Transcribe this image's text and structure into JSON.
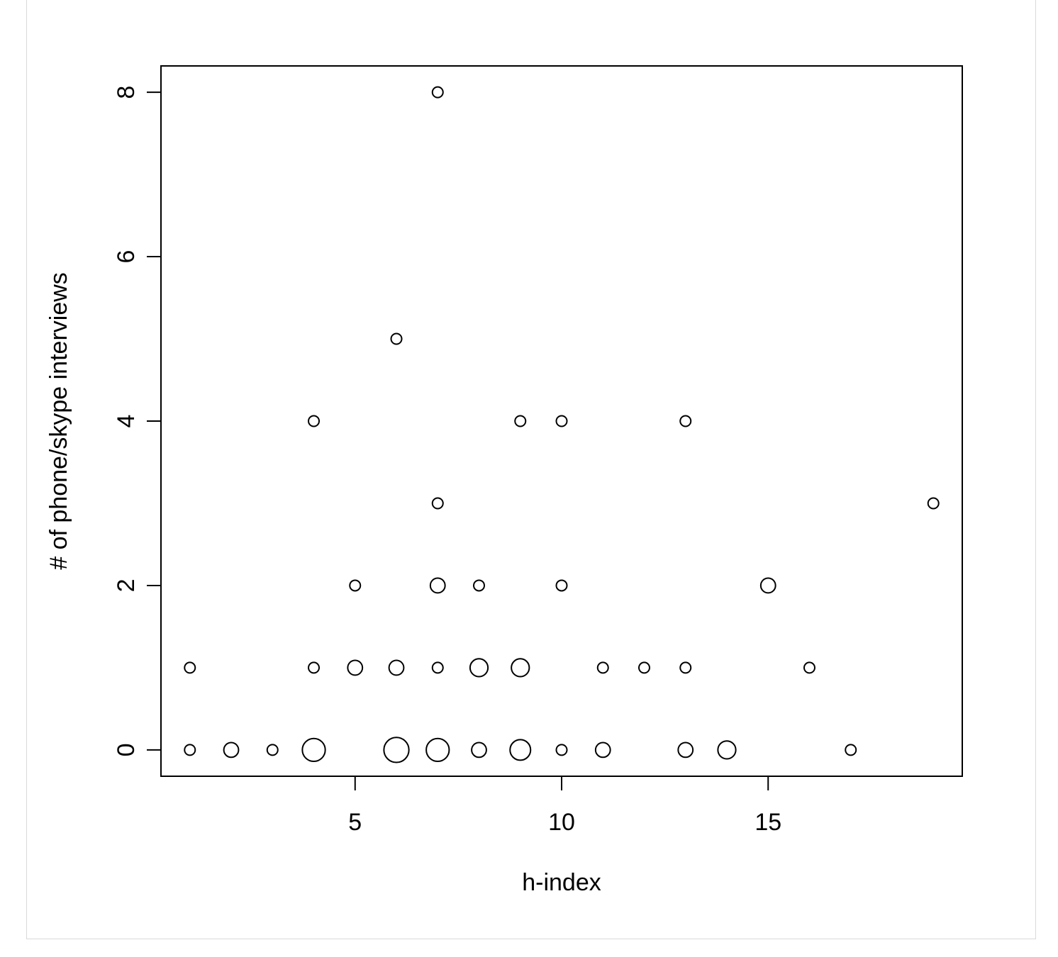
{
  "chart_data": {
    "type": "scatter",
    "title": "",
    "xlabel": "h-index",
    "ylabel": "# of phone/skype interviews",
    "xlim": [
      0.3,
      19.7
    ],
    "ylim": [
      -0.32,
      8.32
    ],
    "x_ticks": [
      5,
      10,
      15
    ],
    "x_tick_labels": [
      "5",
      "10",
      "15"
    ],
    "y_ticks": [
      0,
      2,
      4,
      6,
      8
    ],
    "y_tick_labels": [
      "0",
      "2",
      "4",
      "6",
      "8"
    ],
    "grid": false,
    "legend": "none",
    "marker": "open-circle",
    "note_size": "circle size encodes number of overlapping observations",
    "points": [
      {
        "x": 7,
        "y": 8,
        "count": 1
      },
      {
        "x": 6,
        "y": 5,
        "count": 1
      },
      {
        "x": 4,
        "y": 4,
        "count": 1
      },
      {
        "x": 9,
        "y": 4,
        "count": 1
      },
      {
        "x": 10,
        "y": 4,
        "count": 1
      },
      {
        "x": 13,
        "y": 4,
        "count": 1
      },
      {
        "x": 7,
        "y": 3,
        "count": 1
      },
      {
        "x": 19,
        "y": 3,
        "count": 1
      },
      {
        "x": 5,
        "y": 2,
        "count": 1
      },
      {
        "x": 7,
        "y": 2,
        "count": 2
      },
      {
        "x": 8,
        "y": 2,
        "count": 1
      },
      {
        "x": 10,
        "y": 2,
        "count": 1
      },
      {
        "x": 15,
        "y": 2,
        "count": 2
      },
      {
        "x": 1,
        "y": 1,
        "count": 1
      },
      {
        "x": 4,
        "y": 1,
        "count": 1
      },
      {
        "x": 5,
        "y": 1,
        "count": 2
      },
      {
        "x": 6,
        "y": 1,
        "count": 2
      },
      {
        "x": 7,
        "y": 1,
        "count": 1
      },
      {
        "x": 8,
        "y": 1,
        "count": 3
      },
      {
        "x": 9,
        "y": 1,
        "count": 3
      },
      {
        "x": 11,
        "y": 1,
        "count": 1
      },
      {
        "x": 12,
        "y": 1,
        "count": 1
      },
      {
        "x": 13,
        "y": 1,
        "count": 1
      },
      {
        "x": 16,
        "y": 1,
        "count": 1
      },
      {
        "x": 1,
        "y": 0,
        "count": 1
      },
      {
        "x": 2,
        "y": 0,
        "count": 2
      },
      {
        "x": 3,
        "y": 0,
        "count": 1
      },
      {
        "x": 4,
        "y": 0,
        "count": 5
      },
      {
        "x": 6,
        "y": 0,
        "count": 6
      },
      {
        "x": 7,
        "y": 0,
        "count": 5
      },
      {
        "x": 8,
        "y": 0,
        "count": 2
      },
      {
        "x": 9,
        "y": 0,
        "count": 4
      },
      {
        "x": 10,
        "y": 0,
        "count": 1
      },
      {
        "x": 11,
        "y": 0,
        "count": 2
      },
      {
        "x": 13,
        "y": 0,
        "count": 2
      },
      {
        "x": 14,
        "y": 0,
        "count": 3
      },
      {
        "x": 17,
        "y": 0,
        "count": 1
      }
    ]
  }
}
